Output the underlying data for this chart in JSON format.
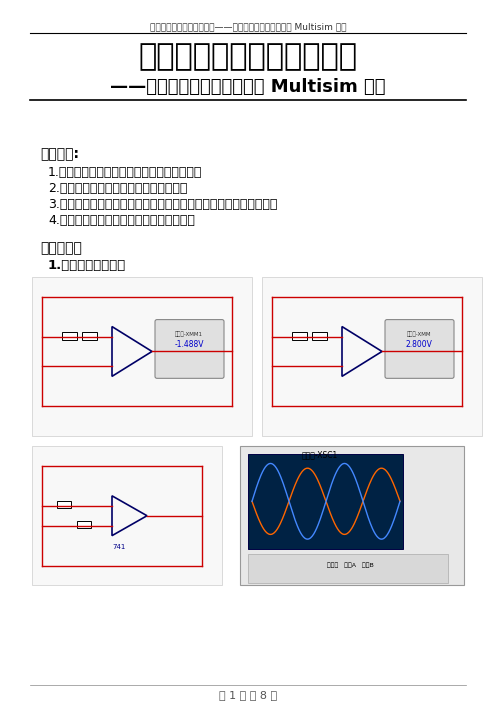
{
  "header_text": "模拟电子技术基础实验预习——集成运算放大器基本应用 Multisim 仿真",
  "title_line1": "模拟电子技术基础实验预习",
  "title_line2": "——集成运算放大器基本应用 Multisim 仿真",
  "section1_title": "实验目的:",
  "section1_items": [
    "1.加深对集成运算放大器的基本特性的理解；",
    "2.掌握集成运算放大器的基本使用方法；",
    "3.熟悉集成运算放大器在基本运算电路中的应用和电路的设计方法；",
    "4.掌握集成运算放大器的安装和调试方法。"
  ],
  "section2_title": "实验内容：",
  "section2_item": "1.反相比例运算电路",
  "footer_text": "第 1 页 共 8 页",
  "bg_color": "#ffffff",
  "text_color": "#000000",
  "header_color": "#333333"
}
